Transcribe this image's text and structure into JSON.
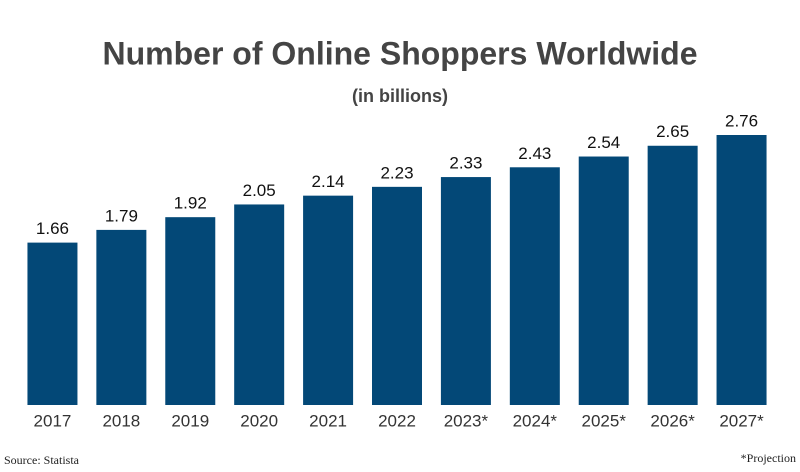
{
  "chart_data": {
    "type": "bar",
    "title": "Number of Online Shoppers Worldwide",
    "subtitle": "(in billions)",
    "categories": [
      "2017",
      "2018",
      "2019",
      "2020",
      "2021",
      "2022",
      "2023*",
      "2024*",
      "2025*",
      "2026*",
      "2027*"
    ],
    "values": [
      1.66,
      1.79,
      1.92,
      2.05,
      2.14,
      2.23,
      2.33,
      2.43,
      2.54,
      2.65,
      2.76
    ],
    "color": "#034877",
    "source": "Source: Statista",
    "note": "*Projection"
  }
}
